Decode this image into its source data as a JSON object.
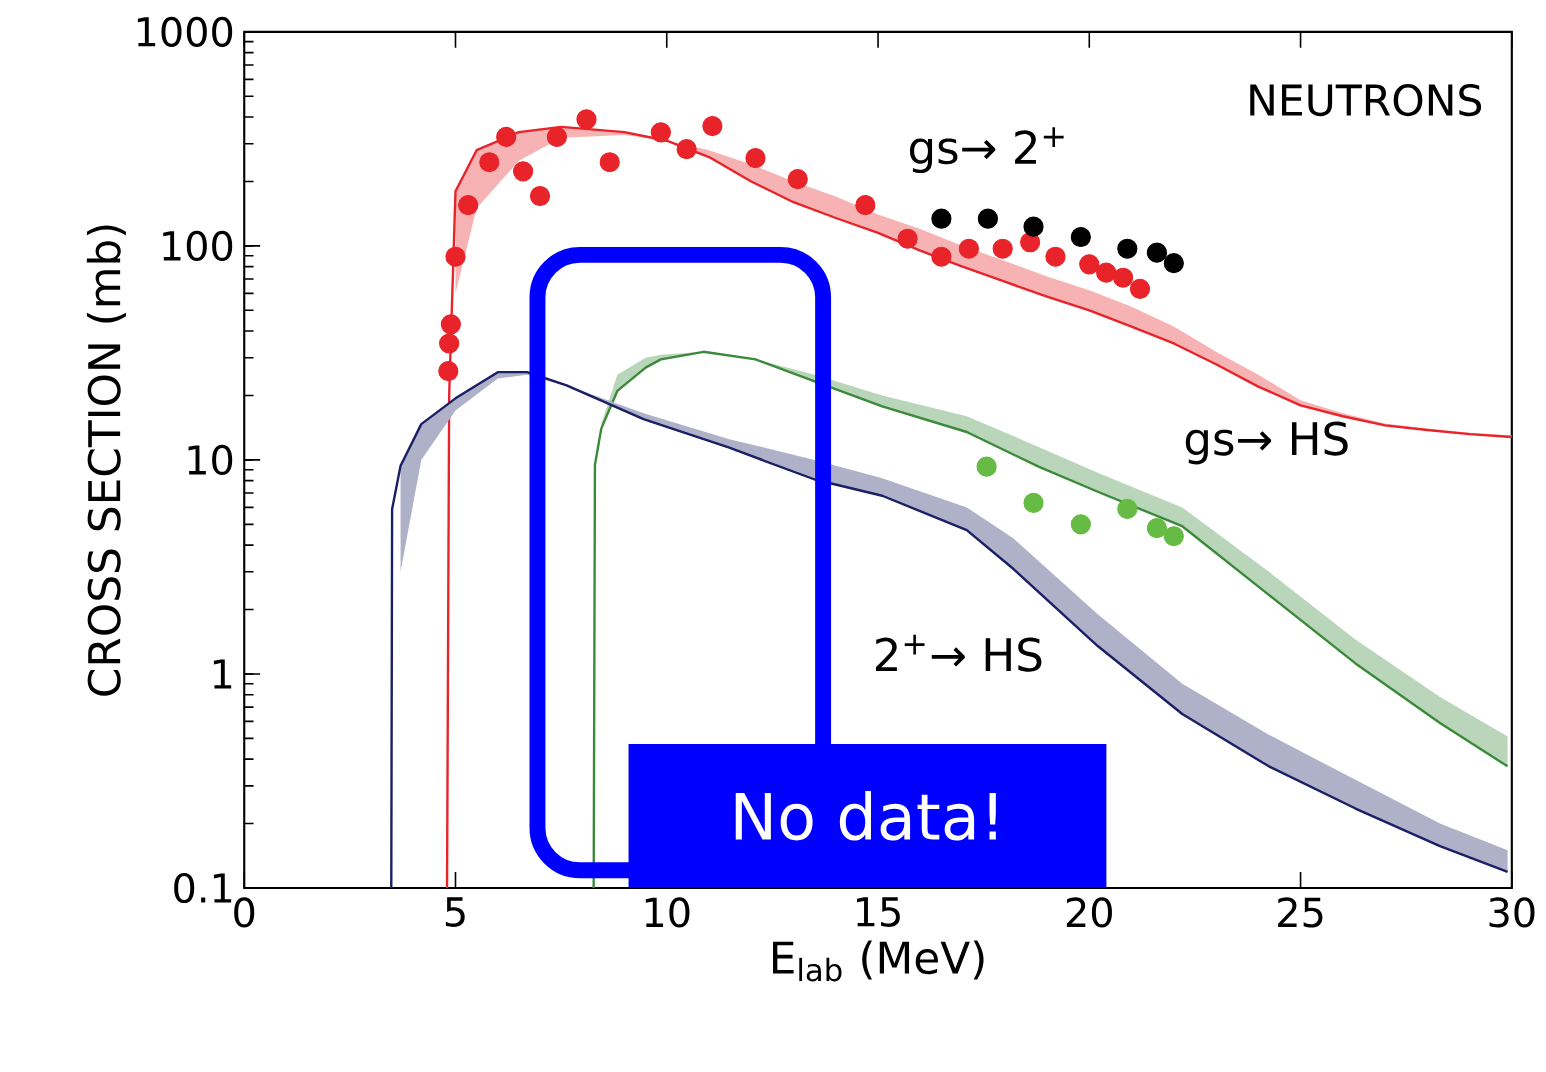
{
  "chart_data": {
    "type": "line",
    "title": "NEUTRONS",
    "xlabel": "E$_{lab}$ (MeV)",
    "ylabel": "CROSS SECTION (mb)",
    "log": "y",
    "xlim": [
      0,
      30
    ],
    "xticks": [
      0,
      5,
      10,
      15,
      20,
      25,
      30
    ],
    "ylim": [
      0.1,
      1000
    ],
    "yticks": [
      0.1,
      1,
      10,
      100,
      1000
    ],
    "series": [
      {
        "color": "#e8242a",
        "x": [
          4.8,
          4.85,
          5.0,
          5.5,
          6.5,
          7.5,
          9,
          10,
          11,
          12,
          13,
          14,
          15,
          16,
          17,
          18,
          19,
          20,
          21,
          22,
          23,
          24,
          25,
          26,
          27,
          28,
          29,
          30
        ],
        "values": [
          0.1,
          20,
          180,
          280,
          340,
          360,
          340,
          310,
          260,
          200,
          160,
          135,
          115,
          95,
          80,
          68,
          58,
          50,
          42,
          35,
          28,
          22,
          18,
          16,
          14.5,
          13.8,
          13.2,
          12.8
        ],
        "lower": [
          null,
          null,
          60,
          150,
          250,
          320,
          330,
          310,
          260,
          200,
          160,
          135,
          115,
          95,
          80,
          68,
          58,
          50,
          42,
          35,
          28,
          22,
          18,
          16,
          14.5,
          13.8,
          13.2,
          12.8
        ],
        "upper": [
          null,
          null,
          180,
          280,
          340,
          360,
          340,
          310,
          280,
          240,
          200,
          170,
          140,
          120,
          100,
          85,
          72,
          62,
          52,
          42,
          32,
          25,
          19,
          16.5,
          14.8,
          14,
          13.4,
          13
        ]
      },
      {
        "color": "#3a8a3a",
        "x": [
          8.27,
          8.3,
          8.45,
          8.83,
          9.5,
          9.86,
          10.87,
          12.1,
          13.5,
          15.1,
          17.1,
          18.8,
          20.2,
          22.2,
          24.25,
          26.3,
          28.3,
          29.9
        ],
        "values": [
          0.1,
          9.5,
          14,
          21,
          27,
          29.5,
          32,
          29.5,
          23.3,
          17.8,
          13.5,
          9.3,
          7.1,
          4.9,
          2.34,
          1.12,
          0.59,
          0.37
        ],
        "lower": [
          null,
          null,
          14,
          21,
          27,
          29.5,
          32,
          29.5,
          23.3,
          17.8,
          13.5,
          9.3,
          7.1,
          4.9,
          2.34,
          1.12,
          0.59,
          0.37
        ],
        "upper": [
          null,
          null,
          14.7,
          25,
          30,
          31,
          32,
          29.5,
          25,
          20,
          16,
          11.5,
          8.7,
          6.0,
          3.0,
          1.45,
          0.78,
          0.51
        ]
      },
      {
        "color": "#1a1f66",
        "x": [
          3.48,
          3.5,
          3.7,
          4.19,
          5.0,
          6.0,
          6.7,
          7.63,
          9.45,
          11.48,
          13.5,
          15.1,
          17.1,
          18.2,
          20.2,
          22.2,
          24.25,
          26.3,
          28.3,
          29.9
        ],
        "values": [
          0.1,
          5.9,
          9.4,
          14.7,
          19.4,
          25.7,
          25.7,
          22.3,
          15.5,
          11.4,
          8.1,
          6.8,
          4.7,
          3.1,
          1.35,
          0.65,
          0.37,
          0.235,
          0.157,
          0.119
        ],
        "lower": [
          null,
          null,
          3,
          10,
          17,
          24,
          25,
          22,
          15.5,
          11.4,
          8.1,
          6.8,
          4.7,
          3.1,
          1.35,
          0.65,
          0.37,
          0.235,
          0.157,
          0.119
        ],
        "upper": [
          null,
          null,
          9.4,
          14.7,
          19.4,
          25.7,
          25.7,
          22.3,
          16.5,
          12.5,
          10,
          8.2,
          6.0,
          4.3,
          1.9,
          0.9,
          0.52,
          0.32,
          0.2,
          0.15
        ]
      },
      {
        "type": "scatter",
        "marker": "circle",
        "color": "#e8242a",
        "x": [
          4.83,
          4.85,
          4.89,
          5.0,
          5.3,
          5.8,
          6.2,
          6.6,
          7.0,
          7.4,
          8.1,
          8.65,
          9.86,
          10.47,
          11.08,
          12.1,
          13.1,
          14.7,
          15.7,
          16.5,
          17.15,
          17.95,
          18.6,
          19.2,
          20.0,
          20.4,
          20.8,
          21.2
        ],
        "values": [
          26,
          35,
          43,
          89,
          155,
          246,
          323,
          223,
          171,
          323,
          390,
          246,
          339,
          283,
          363,
          257,
          205,
          155,
          108,
          89,
          97,
          97,
          104,
          89,
          82,
          75,
          71,
          63
        ]
      },
      {
        "type": "scatter",
        "marker": "circle",
        "color": "#000000",
        "x": [
          16.5,
          17.6,
          18.68,
          19.8,
          20.9,
          21.6,
          22.0
        ],
        "values": [
          134,
          134,
          123,
          110,
          97,
          93,
          83
        ]
      },
      {
        "type": "scatter",
        "marker": "circle",
        "color": "#66bb44",
        "x": [
          17.57,
          18.68,
          19.8,
          20.9,
          21.6,
          22.0
        ],
        "values": [
          9.3,
          6.3,
          5.0,
          5.9,
          4.8,
          4.4
        ]
      }
    ],
    "annotations": [
      "gs→ 2$^{+}$",
      "gs→ HS",
      "2$^{+}$→ HS",
      "No data!"
    ]
  }
}
